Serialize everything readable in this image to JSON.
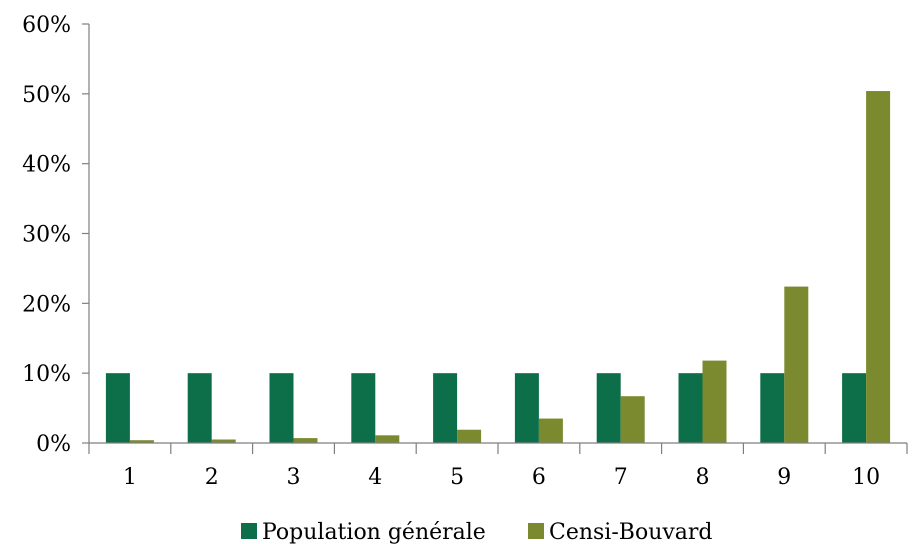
{
  "chart_data": {
    "type": "bar",
    "title": "",
    "xlabel": "",
    "ylabel": "",
    "categories": [
      "1",
      "2",
      "3",
      "4",
      "5",
      "6",
      "7",
      "8",
      "9",
      "10"
    ],
    "series": [
      {
        "name": "Population générale",
        "color": "#0d6e4a",
        "values": [
          10,
          10,
          10,
          10,
          10,
          10,
          10,
          10,
          10,
          10
        ]
      },
      {
        "name": "Censi-Bouvard",
        "color": "#7b8a2f",
        "values": [
          0.4,
          0.5,
          0.7,
          1.1,
          1.9,
          3.5,
          6.7,
          11.8,
          22.4,
          50.4
        ]
      }
    ],
    "ylim": [
      0,
      60
    ],
    "yticks": [
      0,
      10,
      20,
      30,
      40,
      50,
      60
    ],
    "ytick_format": "%",
    "grid": false,
    "legend_position": "bottom"
  }
}
